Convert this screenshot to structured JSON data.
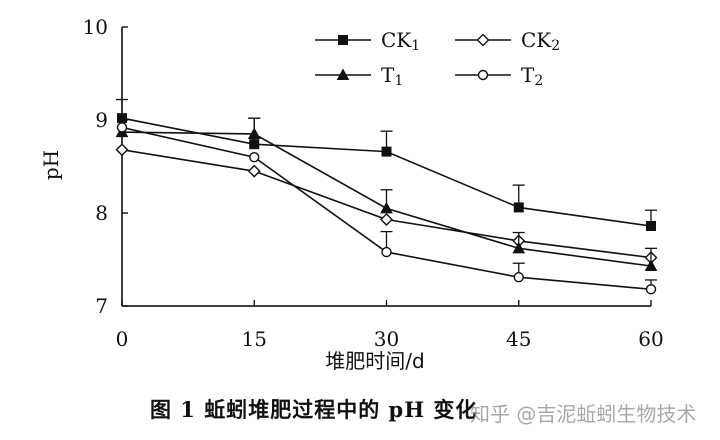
{
  "chart_data": {
    "type": "line",
    "xlabel": "堆肥时间/d",
    "ylabel": "pH",
    "x": [
      0,
      15,
      30,
      45,
      60
    ],
    "xlim": [
      0,
      60
    ],
    "ylim": [
      7,
      10
    ],
    "x_ticks": [
      "0",
      "15",
      "30",
      "45",
      "60"
    ],
    "y_ticks": [
      "7",
      "8",
      "9",
      "10"
    ],
    "grid": false,
    "legend_position": "top-right",
    "series": [
      {
        "name": "CK1",
        "marker": "filled-square",
        "values": [
          9.02,
          8.74,
          8.66,
          8.06,
          7.86
        ],
        "error": [
          0.2,
          0.28,
          0.22,
          0.24,
          0.17
        ]
      },
      {
        "name": "CK2",
        "marker": "open-diamond",
        "values": [
          8.68,
          8.45,
          7.93,
          7.7,
          7.52
        ],
        "error": [
          0.0,
          0.0,
          0.0,
          0.0,
          0.0
        ]
      },
      {
        "name": "T1",
        "marker": "filled-triangle",
        "values": [
          8.87,
          8.85,
          8.05,
          7.62,
          7.43
        ],
        "error": [
          0.0,
          0.17,
          0.2,
          0.17,
          0.19
        ]
      },
      {
        "name": "T2",
        "marker": "open-circle",
        "values": [
          8.92,
          8.6,
          7.58,
          7.31,
          7.18
        ],
        "error": [
          0.0,
          0.0,
          0.22,
          0.15,
          0.1
        ]
      }
    ]
  },
  "caption": {
    "text": "图 1   蚯蚓堆肥过程中的 pH 变化",
    "watermark": "知乎 @吉泥蚯蚓生物技术"
  }
}
